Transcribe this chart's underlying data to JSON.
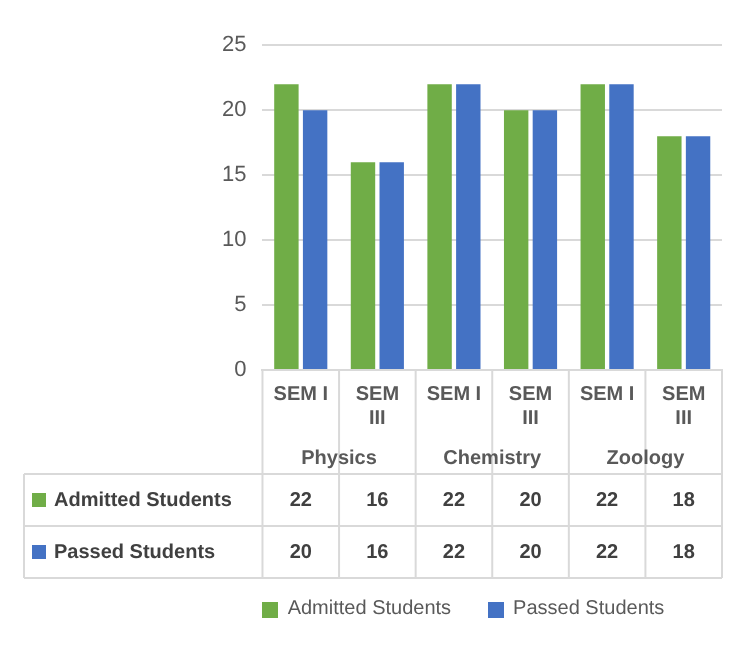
{
  "chart_data": {
    "type": "bar",
    "categories": [
      "SEM I",
      "SEM III",
      "SEM I",
      "SEM III",
      "SEM I",
      "SEM III"
    ],
    "series": [
      {
        "name": "Admitted Students",
        "color": "#70ad47",
        "values": [
          22,
          16,
          22,
          20,
          22,
          18
        ]
      },
      {
        "name": "Passed Students",
        "color": "#4472c4",
        "values": [
          20,
          16,
          22,
          20,
          22,
          18
        ]
      }
    ],
    "annotations": [
      "Physics",
      "Chemistry",
      "Zoology"
    ],
    "ylim": [
      0,
      25
    ],
    "yticks": [
      0,
      5,
      10,
      15,
      20,
      25
    ],
    "grid": "y",
    "legend": "bottom",
    "data_labels": true
  }
}
